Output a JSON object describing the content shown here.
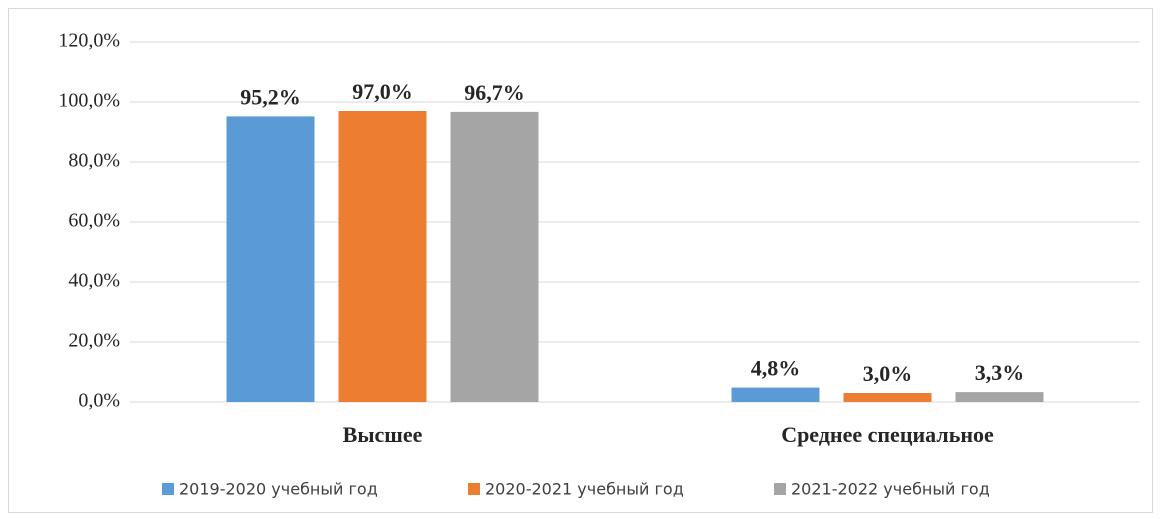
{
  "chart_data": {
    "type": "bar",
    "categories": [
      "Высшее",
      "Среднее специальное"
    ],
    "series": [
      {
        "name": "2019-2020 учебный год",
        "color": "#5b9bd5",
        "values": [
          95.2,
          4.8
        ],
        "value_labels": [
          "95,2%",
          "4,8%"
        ]
      },
      {
        "name": "2020-2021 учебный год",
        "color": "#ed7d31",
        "values": [
          97.0,
          3.0
        ],
        "value_labels": [
          "97,0%",
          "3,0%"
        ]
      },
      {
        "name": "2021-2022 учебный год",
        "color": "#a5a5a5",
        "values": [
          96.7,
          3.3
        ],
        "value_labels": [
          "96,7%",
          "3,3%"
        ]
      }
    ],
    "ylim": [
      0,
      120
    ],
    "yticks": [
      {
        "value": 0,
        "label": "0,0%"
      },
      {
        "value": 20,
        "label": "20,0%"
      },
      {
        "value": 40,
        "label": "40,0%"
      },
      {
        "value": 60,
        "label": "60,0%"
      },
      {
        "value": 80,
        "label": "80,0%"
      },
      {
        "value": 100,
        "label": "100,0%"
      },
      {
        "value": 120,
        "label": "120,0%"
      }
    ],
    "grid": true,
    "legend": "bottom"
  }
}
